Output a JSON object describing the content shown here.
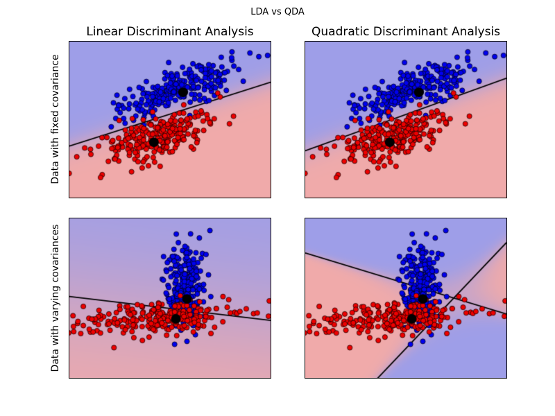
{
  "figure": {
    "title": "LDA vs QDA",
    "col_titles": [
      "Linear Discriminant Analysis",
      "Quadratic Discriminant Analysis"
    ],
    "row_labels": [
      "Data with fixed covariance",
      "Data with varying covariances"
    ]
  },
  "colors": {
    "background": "#ffffff",
    "blue_point": "#0000ee",
    "red_point": "#ee0000",
    "blue_region": "#9e9ee8",
    "red_region": "#f0aaaa",
    "boundary_line": "#000000",
    "mean_marker": "#000000",
    "point_edge": "#000000"
  },
  "chart_data": {
    "type": "scatter",
    "title": "LDA vs QDA",
    "axes_ticks_visible": false,
    "legend": null,
    "marker": {
      "point_radius": 3.6,
      "mean_radius": 7
    },
    "subplots": [
      {
        "id": "lda-fixed",
        "row": 0,
        "col": 0,
        "row_label": "Data with fixed covariance",
        "col_title": "Linear Discriminant Analysis",
        "boundary": {
          "kind": "line",
          "softness": 0.04,
          "lines": [
            {
              "y0": 0.67,
              "y1": 0.26
            }
          ]
        },
        "clusters": [
          {
            "class": "blue",
            "n": 250,
            "cx": 0.55,
            "cy": 0.3,
            "sx": 0.16,
            "sy": 0.055,
            "angle_deg": -27,
            "seed": 7
          },
          {
            "class": "red",
            "n": 250,
            "cx": 0.4,
            "cy": 0.63,
            "sx": 0.17,
            "sy": 0.065,
            "angle_deg": -27,
            "seed": 13
          }
        ],
        "means": [
          [
            0.565,
            0.325
          ],
          [
            0.42,
            0.645
          ]
        ]
      },
      {
        "id": "qda-fixed",
        "row": 0,
        "col": 1,
        "row_label": "Data with fixed covariance",
        "col_title": "Quadratic Discriminant Analysis",
        "boundary": {
          "kind": "line",
          "softness": 0.04,
          "lines": [
            {
              "y0": 0.7,
              "y1": 0.235
            }
          ]
        },
        "clusters": [
          {
            "class": "blue",
            "n": 250,
            "cx": 0.55,
            "cy": 0.3,
            "sx": 0.16,
            "sy": 0.055,
            "angle_deg": -27,
            "seed": 7
          },
          {
            "class": "red",
            "n": 250,
            "cx": 0.4,
            "cy": 0.63,
            "sx": 0.17,
            "sy": 0.065,
            "angle_deg": -27,
            "seed": 13
          }
        ],
        "means": [
          [
            0.565,
            0.325
          ],
          [
            0.42,
            0.645
          ]
        ]
      },
      {
        "id": "lda-varying",
        "row": 1,
        "col": 0,
        "row_label": "Data with varying covariances",
        "col_title": "Linear Discriminant Analysis",
        "boundary": {
          "kind": "line",
          "softness": 0.25,
          "lines": [
            {
              "y0": 0.49,
              "y1": 0.64
            }
          ]
        },
        "clusters": [
          {
            "class": "blue",
            "n": 250,
            "cx": 0.575,
            "cy": 0.42,
            "sx": 0.05,
            "sy": 0.14,
            "angle_deg": 0,
            "seed": 21
          },
          {
            "class": "red",
            "n": 250,
            "cx": 0.43,
            "cy": 0.625,
            "sx": 0.2,
            "sy": 0.05,
            "angle_deg": -7,
            "seed": 33
          }
        ],
        "means": [
          [
            0.585,
            0.505
          ],
          [
            0.53,
            0.63
          ]
        ]
      },
      {
        "id": "qda-varying",
        "row": 1,
        "col": 1,
        "row_label": "Data with varying covariances",
        "col_title": "Quadratic Discriminant Analysis",
        "boundary": {
          "kind": "cross",
          "softness": 0.06,
          "scale": 4,
          "lines": [
            {
              "y0": 0.217,
              "y1": 0.6
            },
            {
              "y0": 1.48,
              "y1": 0.152
            }
          ]
        },
        "clusters": [
          {
            "class": "blue",
            "n": 250,
            "cx": 0.575,
            "cy": 0.42,
            "sx": 0.05,
            "sy": 0.14,
            "angle_deg": 0,
            "seed": 21
          },
          {
            "class": "red",
            "n": 250,
            "cx": 0.43,
            "cy": 0.625,
            "sx": 0.2,
            "sy": 0.05,
            "angle_deg": -7,
            "seed": 33
          }
        ],
        "means": [
          [
            0.585,
            0.505
          ],
          [
            0.53,
            0.63
          ]
        ]
      }
    ]
  }
}
